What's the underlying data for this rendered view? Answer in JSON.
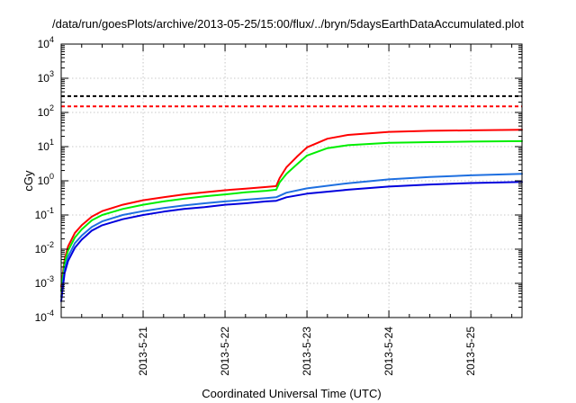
{
  "chart_data": {
    "type": "line",
    "title": "/data/run/goesPlots/archive/2013-05-25/15:00/flux/../bryn/5daysEarthDataAccumulated.plot",
    "xlabel": "Coordinated Universal Time (UTC)",
    "ylabel": "cGy",
    "yscale": "log",
    "ylim": [
      0.0001,
      10000
    ],
    "xlim": [
      "2013-05-20 00:00",
      "2013-05-25 15:00"
    ],
    "grid": true,
    "legend": "none",
    "xticks": [
      "2013-5-21",
      "2013-5-22",
      "2013-5-23",
      "2013-5-24",
      "2013-5-25"
    ],
    "yticks": [
      {
        "base": "10",
        "exp": "-4"
      },
      {
        "base": "10",
        "exp": "-3"
      },
      {
        "base": "10",
        "exp": "-2"
      },
      {
        "base": "10",
        "exp": "-1"
      },
      {
        "base": "10",
        "exp": "0"
      },
      {
        "base": "10",
        "exp": "1"
      },
      {
        "base": "10",
        "exp": "2"
      },
      {
        "base": "10",
        "exp": "3"
      },
      {
        "base": "10",
        "exp": "4"
      }
    ],
    "series": [
      {
        "color": "#ff0000",
        "style": "solid",
        "points": [
          [
            "2013-05-20 00:00",
            0.0008
          ],
          [
            "2013-05-20 01:00",
            0.005
          ],
          [
            "2013-05-20 02:00",
            0.012
          ],
          [
            "2013-05-20 04:00",
            0.03
          ],
          [
            "2013-05-20 06:00",
            0.05
          ],
          [
            "2013-05-20 09:00",
            0.09
          ],
          [
            "2013-05-20 12:00",
            0.13
          ],
          [
            "2013-05-20 18:00",
            0.2
          ],
          [
            "2013-05-21 00:00",
            0.27
          ],
          [
            "2013-05-21 06:00",
            0.33
          ],
          [
            "2013-05-21 12:00",
            0.4
          ],
          [
            "2013-05-21 18:00",
            0.46
          ],
          [
            "2013-05-22 00:00",
            0.53
          ],
          [
            "2013-05-22 06:00",
            0.59
          ],
          [
            "2013-05-22 12:00",
            0.66
          ],
          [
            "2013-05-22 15:00",
            0.7
          ],
          [
            "2013-05-22 16:00",
            1.2
          ],
          [
            "2013-05-22 18:00",
            2.5
          ],
          [
            "2013-05-22 21:00",
            5.0
          ],
          [
            "2013-05-23 00:00",
            9.5
          ],
          [
            "2013-05-23 06:00",
            17
          ],
          [
            "2013-05-23 12:00",
            22
          ],
          [
            "2013-05-24 00:00",
            27
          ],
          [
            "2013-05-24 12:00",
            29
          ],
          [
            "2013-05-25 00:00",
            30
          ],
          [
            "2013-05-25 15:00",
            31
          ]
        ]
      },
      {
        "color": "#00ee00",
        "style": "solid",
        "points": [
          [
            "2013-05-20 00:00",
            0.0006
          ],
          [
            "2013-05-20 01:00",
            0.004
          ],
          [
            "2013-05-20 02:00",
            0.009
          ],
          [
            "2013-05-20 04:00",
            0.022
          ],
          [
            "2013-05-20 06:00",
            0.038
          ],
          [
            "2013-05-20 09:00",
            0.07
          ],
          [
            "2013-05-20 12:00",
            0.1
          ],
          [
            "2013-05-20 18:00",
            0.15
          ],
          [
            "2013-05-21 00:00",
            0.2
          ],
          [
            "2013-05-21 06:00",
            0.25
          ],
          [
            "2013-05-21 12:00",
            0.3
          ],
          [
            "2013-05-21 18:00",
            0.35
          ],
          [
            "2013-05-22 00:00",
            0.4
          ],
          [
            "2013-05-22 06:00",
            0.46
          ],
          [
            "2013-05-22 12:00",
            0.51
          ],
          [
            "2013-05-22 15:00",
            0.55
          ],
          [
            "2013-05-22 16:00",
            0.9
          ],
          [
            "2013-05-22 18:00",
            1.6
          ],
          [
            "2013-05-22 21:00",
            3.0
          ],
          [
            "2013-05-23 00:00",
            5.5
          ],
          [
            "2013-05-23 06:00",
            9.0
          ],
          [
            "2013-05-23 12:00",
            11
          ],
          [
            "2013-05-24 00:00",
            13
          ],
          [
            "2013-05-24 12:00",
            13.5
          ],
          [
            "2013-05-25 00:00",
            14
          ],
          [
            "2013-05-25 15:00",
            14.5
          ]
        ]
      },
      {
        "color": "#1e6fe0",
        "style": "solid",
        "points": [
          [
            "2013-05-20 00:00",
            0.0004
          ],
          [
            "2013-05-20 01:00",
            0.0025
          ],
          [
            "2013-05-20 02:00",
            0.006
          ],
          [
            "2013-05-20 04:00",
            0.015
          ],
          [
            "2013-05-20 06:00",
            0.025
          ],
          [
            "2013-05-20 09:00",
            0.045
          ],
          [
            "2013-05-20 12:00",
            0.065
          ],
          [
            "2013-05-20 18:00",
            0.1
          ],
          [
            "2013-05-21 00:00",
            0.13
          ],
          [
            "2013-05-21 06:00",
            0.16
          ],
          [
            "2013-05-21 12:00",
            0.19
          ],
          [
            "2013-05-21 18:00",
            0.22
          ],
          [
            "2013-05-22 00:00",
            0.25
          ],
          [
            "2013-05-22 06:00",
            0.28
          ],
          [
            "2013-05-22 12:00",
            0.31
          ],
          [
            "2013-05-22 15:00",
            0.33
          ],
          [
            "2013-05-22 18:00",
            0.45
          ],
          [
            "2013-05-23 00:00",
            0.6
          ],
          [
            "2013-05-23 12:00",
            0.85
          ],
          [
            "2013-05-24 00:00",
            1.1
          ],
          [
            "2013-05-24 12:00",
            1.3
          ],
          [
            "2013-05-25 00:00",
            1.45
          ],
          [
            "2013-05-25 15:00",
            1.6
          ]
        ]
      },
      {
        "color": "#0000dd",
        "style": "solid",
        "points": [
          [
            "2013-05-20 00:00",
            0.0003
          ],
          [
            "2013-05-20 01:00",
            0.002
          ],
          [
            "2013-05-20 02:00",
            0.0045
          ],
          [
            "2013-05-20 04:00",
            0.011
          ],
          [
            "2013-05-20 06:00",
            0.019
          ],
          [
            "2013-05-20 09:00",
            0.035
          ],
          [
            "2013-05-20 12:00",
            0.05
          ],
          [
            "2013-05-20 18:00",
            0.075
          ],
          [
            "2013-05-21 00:00",
            0.1
          ],
          [
            "2013-05-21 06:00",
            0.125
          ],
          [
            "2013-05-21 12:00",
            0.15
          ],
          [
            "2013-05-21 18:00",
            0.17
          ],
          [
            "2013-05-22 00:00",
            0.2
          ],
          [
            "2013-05-22 06:00",
            0.22
          ],
          [
            "2013-05-22 12:00",
            0.25
          ],
          [
            "2013-05-22 15:00",
            0.26
          ],
          [
            "2013-05-22 18:00",
            0.33
          ],
          [
            "2013-05-23 00:00",
            0.42
          ],
          [
            "2013-05-23 12:00",
            0.55
          ],
          [
            "2013-05-24 00:00",
            0.68
          ],
          [
            "2013-05-24 12:00",
            0.78
          ],
          [
            "2013-05-25 00:00",
            0.86
          ],
          [
            "2013-05-25 15:00",
            0.93
          ]
        ]
      },
      {
        "color": "#000000",
        "style": "dashed",
        "points": [
          [
            "2013-05-20 00:00",
            300
          ],
          [
            "2013-05-25 15:00",
            300
          ]
        ]
      },
      {
        "color": "#ff0000",
        "style": "dashed",
        "points": [
          [
            "2013-05-20 00:00",
            150
          ],
          [
            "2013-05-25 15:00",
            150
          ]
        ]
      }
    ]
  }
}
